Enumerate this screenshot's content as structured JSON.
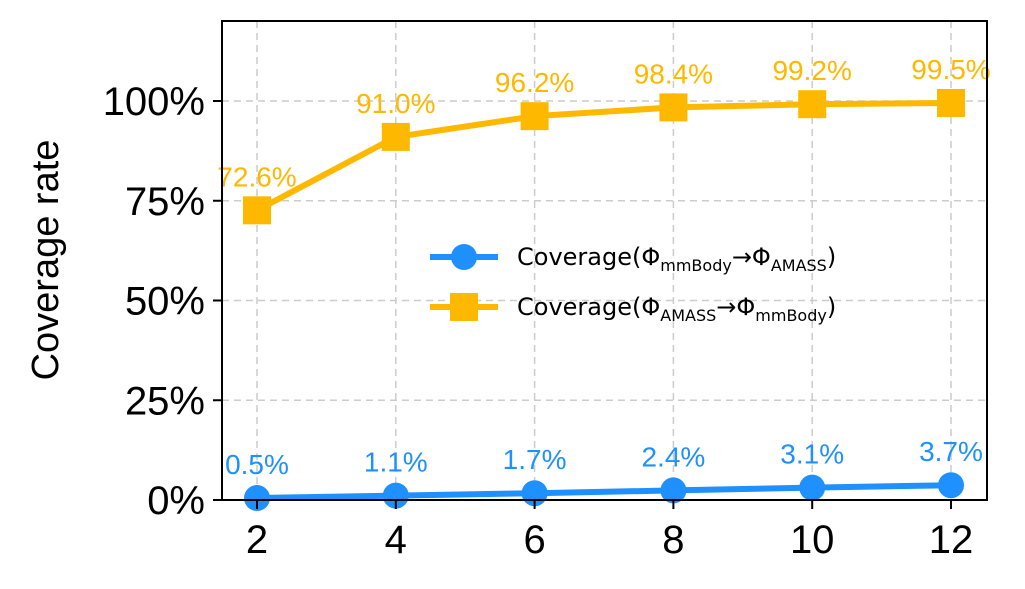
{
  "chart_data": {
    "type": "line",
    "title": "",
    "xlabel": "",
    "ylabel": "Coverage rate",
    "x": [
      2,
      4,
      6,
      8,
      10,
      12
    ],
    "x_tick_labels": [
      "2",
      "4",
      "6",
      "8",
      "10",
      "12"
    ],
    "y_ticks": [
      0,
      25,
      50,
      75,
      100
    ],
    "y_tick_labels": [
      "0%",
      "25%",
      "50%",
      "75%",
      "100%"
    ],
    "ylim": [
      0,
      120
    ],
    "xlim": [
      1.5,
      12.5
    ],
    "grid": true,
    "legend_position": "center-right",
    "series": [
      {
        "name": "Coverage(Φ_mmBody→Φ_AMASS)",
        "legend_main": "Coverage(Φ",
        "legend_sub1": "mmBody",
        "legend_mid": "→Φ",
        "legend_sub2": "AMASS",
        "legend_end": ")",
        "color": "#1E90FF",
        "marker": "circle",
        "values": [
          0.5,
          1.1,
          1.7,
          2.4,
          3.1,
          3.7
        ],
        "labels": [
          "0.5%",
          "1.1%",
          "1.7%",
          "2.4%",
          "3.1%",
          "3.7%"
        ]
      },
      {
        "name": "Coverage(Φ_AMASS→Φ_mmBody)",
        "legend_main": "Coverage(Φ",
        "legend_sub1": "AMASS",
        "legend_mid": "→Φ",
        "legend_sub2": "mmBody",
        "legend_end": ")",
        "color": "#FFB800",
        "marker": "square",
        "values": [
          72.6,
          91.0,
          96.2,
          98.4,
          99.2,
          99.5
        ],
        "labels": [
          "72.6%",
          "91.0%",
          "96.2%",
          "98.4%",
          "99.2%",
          "99.5%"
        ]
      }
    ]
  }
}
